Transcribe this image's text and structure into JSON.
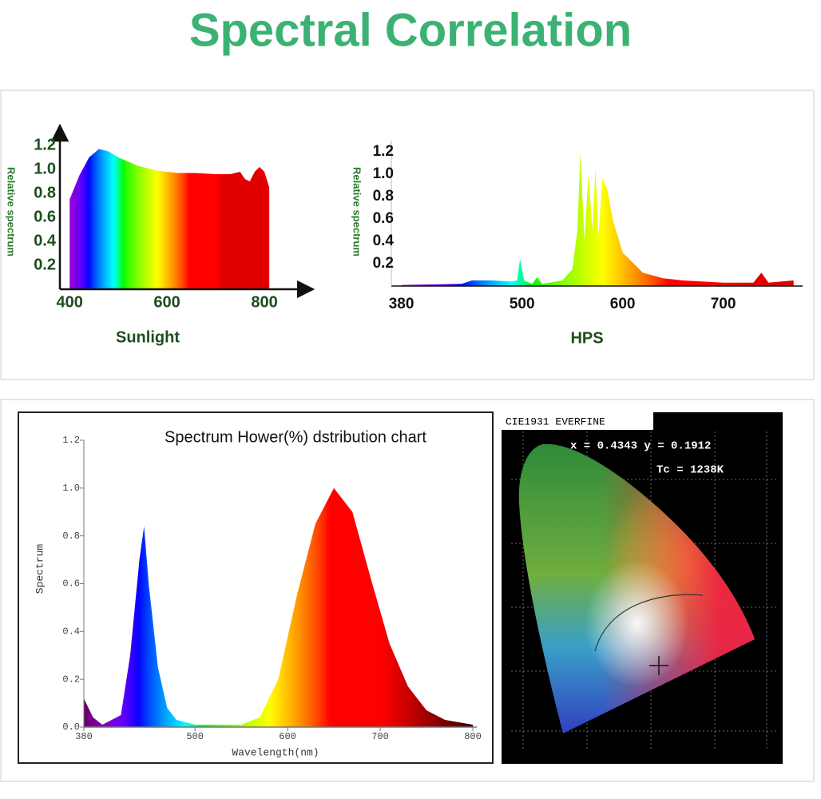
{
  "title": "Spectral Correlation",
  "chart_data": [
    {
      "type": "area",
      "y_label": "Relative spectrum",
      "x_label": "Sunlight",
      "x": [
        400,
        420,
        440,
        460,
        480,
        500,
        540,
        580,
        620,
        660,
        700,
        730,
        750,
        760,
        770,
        780,
        790,
        800,
        810
      ],
      "values": [
        0.75,
        0.95,
        1.1,
        1.17,
        1.15,
        1.1,
        1.03,
        0.99,
        0.97,
        0.97,
        0.96,
        0.96,
        0.98,
        0.92,
        0.9,
        0.98,
        1.02,
        0.98,
        0.85
      ],
      "xlim": [
        380,
        900
      ],
      "ylim": [
        0,
        1.3
      ],
      "xticks": [
        400,
        600,
        800
      ],
      "yticks": [
        0.2,
        0.4,
        0.6,
        0.8,
        {
          "value": 1,
          "label": "1.0"
        },
        1.2
      ]
    },
    {
      "type": "area",
      "y_label": "Relative spectrum",
      "x_label": "HPS",
      "x": [
        380,
        440,
        450,
        470,
        490,
        495,
        498,
        502,
        510,
        515,
        520,
        540,
        550,
        555,
        558,
        562,
        566,
        570,
        573,
        576,
        580,
        585,
        590,
        600,
        620,
        640,
        660,
        700,
        730,
        738,
        745,
        770
      ],
      "values": [
        0.01,
        0.02,
        0.05,
        0.05,
        0.04,
        0.05,
        0.24,
        0.05,
        0.02,
        0.08,
        0.02,
        0.05,
        0.15,
        0.5,
        1.2,
        0.4,
        1.0,
        0.5,
        1.05,
        0.45,
        0.97,
        0.85,
        0.6,
        0.3,
        0.12,
        0.07,
        0.05,
        0.03,
        0.03,
        0.12,
        0.03,
        0.05
      ],
      "xlim": [
        370,
        775
      ],
      "ylim": [
        0,
        1.3
      ],
      "xticks": [
        380,
        500,
        600,
        700
      ],
      "yticks": [
        0.2,
        0.4,
        0.6,
        0.8,
        {
          "value": 1,
          "label": "1.0"
        },
        1.2
      ]
    },
    {
      "type": "area",
      "title": "Spectrum Hower(%) dstribution chart",
      "y_label": "Spectrum",
      "x_label": "Wavelength(nm)",
      "x": [
        380,
        390,
        400,
        420,
        430,
        440,
        445,
        450,
        460,
        470,
        480,
        500,
        550,
        570,
        590,
        610,
        630,
        650,
        670,
        690,
        710,
        730,
        750,
        770,
        800
      ],
      "values": [
        0.12,
        0.04,
        0.01,
        0.05,
        0.3,
        0.7,
        0.84,
        0.6,
        0.25,
        0.08,
        0.03,
        0.01,
        0.01,
        0.04,
        0.2,
        0.55,
        0.85,
        1.0,
        0.9,
        0.62,
        0.35,
        0.17,
        0.07,
        0.03,
        0.01
      ],
      "xlim": [
        380,
        800
      ],
      "ylim": [
        0,
        1.2
      ],
      "xticks": [
        380,
        500,
        600,
        700,
        800
      ],
      "yticks": [
        {
          "value": 0,
          "label": "0.0"
        },
        0.2,
        0.4,
        0.6,
        0.8,
        {
          "value": 1,
          "label": "1.0"
        },
        1.2
      ]
    }
  ],
  "cie_panel": {
    "title": "CIE1931 EVERFINE",
    "coordinates": "x = 0.4343 y = 0.1912",
    "color_temperature": "Tc = 1238K"
  }
}
